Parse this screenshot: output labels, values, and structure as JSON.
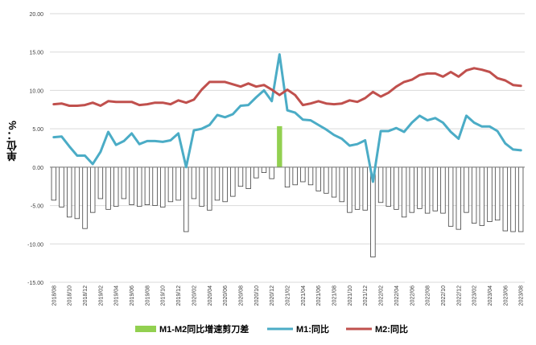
{
  "chart_data": {
    "type": "line",
    "title": "",
    "ylabel": "单位：%",
    "ylim": [
      -15,
      20
    ],
    "yticks": [
      "-15.00",
      "-10.00",
      "-5.00",
      "0.00",
      "5.00",
      "10.00",
      "15.00",
      "20.00"
    ],
    "xtick_labels": [
      "2018/08",
      "2018/10",
      "2018/12",
      "2019/02",
      "2019/04",
      "2019/06",
      "2019/08",
      "2019/10",
      "2019/12",
      "2020/02",
      "2020/04",
      "2020/06",
      "2020/08",
      "2020/10",
      "2020/12",
      "2021/02",
      "2021/04",
      "2021/06",
      "2021/08",
      "2021/10",
      "2021/12",
      "2022/02",
      "2022/04",
      "2022/06",
      "2022/08",
      "2022/10",
      "2022/12",
      "2023/02",
      "2023/04",
      "2023/06",
      "2023/08"
    ],
    "legend_position": "bottom",
    "grid": "horizontal",
    "series": [
      {
        "name": "M1-M2同比增速剪刀差",
        "kind": "bar",
        "color": "#92d050",
        "values": [
          -4.3,
          -5.2,
          -6.5,
          -6.7,
          -8,
          -5.9,
          -4.1,
          -5.5,
          -5.1,
          -4.1,
          -4.9,
          -5.1,
          -4.9,
          -5,
          -5.2,
          -4.5,
          -4.3,
          -8.4,
          -4.1,
          -5.1,
          -5.6,
          -4.3,
          -4.5,
          -3.8,
          -2.5,
          -2.8,
          -1.4,
          -0.7,
          -1.5,
          5.3,
          -2.6,
          -2.3,
          -1.9,
          -2.3,
          -3.1,
          -3.4,
          -3.9,
          -4.5,
          -5.9,
          -5.5,
          -5.6,
          -11.7,
          -4.6,
          -5.1,
          -5.5,
          -6.5,
          -5.9,
          -5.4,
          -6,
          -5.7,
          -6,
          -7.7,
          -8.1,
          -5.9,
          -7.3,
          -7.6,
          -7.1,
          -6.9,
          -8.3,
          -8.4,
          -8.4
        ],
        "highlight_color": "#92d050"
      },
      {
        "name": "M1:同比",
        "kind": "line",
        "color": "#4bacc6",
        "values": [
          3.9,
          4,
          2.7,
          1.5,
          1.5,
          0.4,
          2,
          4.6,
          2.9,
          3.4,
          4.4,
          3,
          3.4,
          3.4,
          3.3,
          3.5,
          4.4,
          0,
          4.8,
          5,
          5.5,
          6.8,
          6.5,
          6.9,
          8,
          8.1,
          9.1,
          10,
          8.6,
          14.7,
          7.4,
          7.1,
          6.2,
          6.1,
          5.5,
          4.9,
          4.2,
          3.7,
          2.8,
          3,
          3.5,
          -1.9,
          4.7,
          4.7,
          5.1,
          4.6,
          5.8,
          6.7,
          6.1,
          6.4,
          5.8,
          4.6,
          3.7,
          6.7,
          5.8,
          5.3,
          5.3,
          4.7,
          3.1,
          2.3,
          2.2
        ]
      },
      {
        "name": "M2:同比",
        "kind": "line",
        "color": "#c0504d",
        "values": [
          8.2,
          8.3,
          8,
          8,
          8.1,
          8.4,
          8,
          8.6,
          8.5,
          8.5,
          8.5,
          8.1,
          8.2,
          8.4,
          8.4,
          8.2,
          8.7,
          8.4,
          8.8,
          10.1,
          11.1,
          11.1,
          11.1,
          10.8,
          10.5,
          10.9,
          10.5,
          10.7,
          10.1,
          9.4,
          10.1,
          9.4,
          8.1,
          8.3,
          8.6,
          8.3,
          8.2,
          8.3,
          8.7,
          8.5,
          9,
          9.8,
          9.2,
          9.7,
          10.5,
          11.1,
          11.4,
          12,
          12.2,
          12.2,
          11.8,
          12.4,
          11.8,
          12.6,
          12.9,
          12.7,
          12.4,
          11.6,
          11.3,
          10.7,
          10.6
        ]
      }
    ]
  }
}
